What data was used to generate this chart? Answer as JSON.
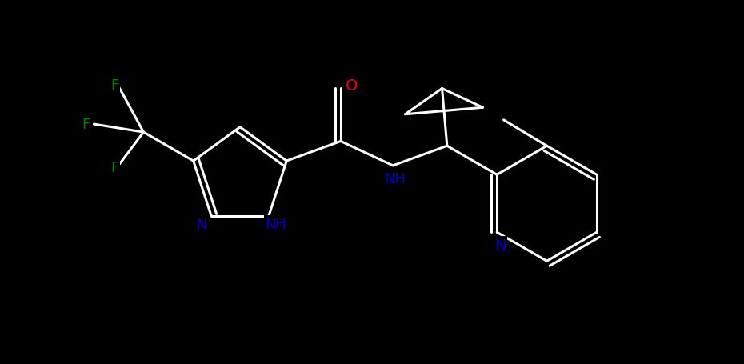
{
  "background_color": "#000000",
  "bond_color": "white",
  "atom_colors": {
    "F": "#008000",
    "N": "#0000cd",
    "O": "#ff0000",
    "C": "white",
    "H": "#0000cd"
  },
  "figsize": [
    9.3,
    4.56
  ],
  "dpi": 100,
  "lw": 2.2,
  "fontsize": 13,
  "bl": 0.72
}
